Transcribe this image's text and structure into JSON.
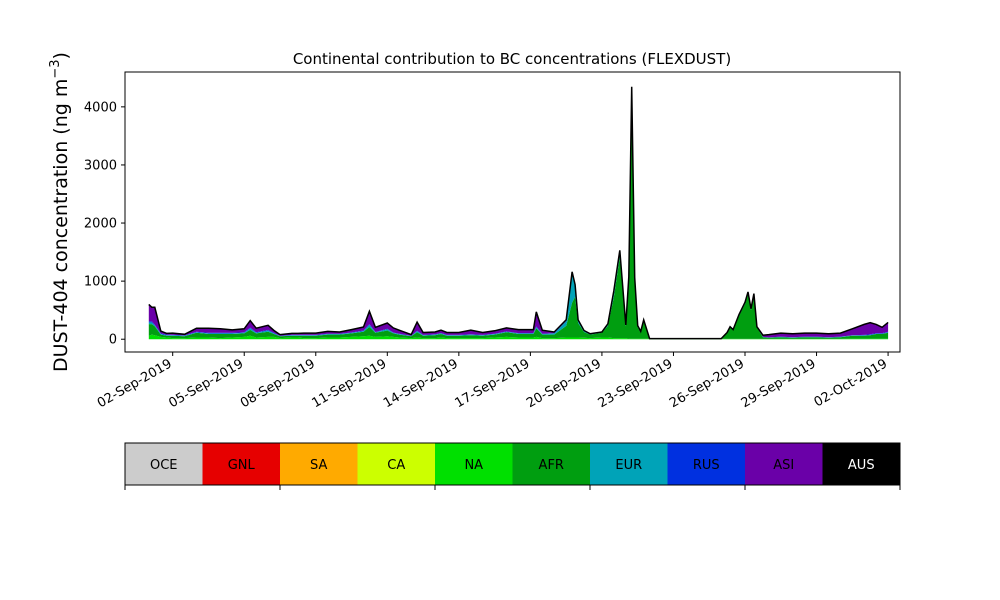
{
  "chart_data": {
    "type": "area",
    "title": "Continental contribution to BC concentrations (FLEXDUST)",
    "ylabel": "DUST-404 concentration (ng m",
    "ylabel_exponent": "−3",
    "ylabel_close": ")",
    "xlabel": "",
    "x_axis": "date",
    "xlim": [
      "2019-08-31T00:00",
      "2019-10-02T12:00"
    ],
    "ylim": [
      -220,
      4600
    ],
    "x_ticks": [
      "2019-09-02",
      "2019-09-05",
      "2019-09-08",
      "2019-09-11",
      "2019-09-14",
      "2019-09-17",
      "2019-09-20",
      "2019-09-23",
      "2019-09-26",
      "2019-09-29",
      "2019-10-02"
    ],
    "x_tick_labels": [
      "02-Sep-2019",
      "05-Sep-2019",
      "08-Sep-2019",
      "11-Sep-2019",
      "14-Sep-2019",
      "17-Sep-2019",
      "20-Sep-2019",
      "23-Sep-2019",
      "26-Sep-2019",
      "29-Sep-2019",
      "02-Oct-2019"
    ],
    "y_ticks": [
      0,
      1000,
      2000,
      3000,
      4000
    ],
    "y_tick_labels": [
      "0",
      "1000",
      "2000",
      "3000",
      "4000"
    ],
    "grid": false,
    "legend_placement": "colorbar below the plot",
    "legend": [
      {
        "label": "OCE",
        "color": "#cccccc",
        "text_color": "#000000"
      },
      {
        "label": "GNL",
        "color": "#e60000",
        "text_color": "#000000"
      },
      {
        "label": "SA",
        "color": "#ffaa00",
        "text_color": "#000000"
      },
      {
        "label": "CA",
        "color": "#ccff00",
        "text_color": "#000000"
      },
      {
        "label": "NA",
        "color": "#00e000",
        "text_color": "#000000"
      },
      {
        "label": "AFR",
        "color": "#009e10",
        "text_color": "#000000"
      },
      {
        "label": "EUR",
        "color": "#00a3b8",
        "text_color": "#000000"
      },
      {
        "label": "RUS",
        "color": "#0030e0",
        "text_color": "#000000"
      },
      {
        "label": "ASI",
        "color": "#6a00a8",
        "text_color": "#000000"
      },
      {
        "label": "AUS",
        "color": "#000000",
        "text_color": "#ffffff"
      }
    ],
    "stack_order": [
      "NA",
      "AFR",
      "EUR",
      "RUS",
      "ASI"
    ],
    "total_line_color": "#000000",
    "x": [
      "2019-09-01T00:00",
      "2019-09-01T03:00",
      "2019-09-01T06:00",
      "2019-09-01T12:00",
      "2019-09-01T18:00",
      "2019-09-02T00:00",
      "2019-09-02T12:00",
      "2019-09-03T00:00",
      "2019-09-03T12:00",
      "2019-09-04T00:00",
      "2019-09-04T12:00",
      "2019-09-05T00:00",
      "2019-09-05T06:00",
      "2019-09-05T12:00",
      "2019-09-06T00:00",
      "2019-09-06T06:00",
      "2019-09-06T12:00",
      "2019-09-07T00:00",
      "2019-09-07T06:00",
      "2019-09-07T12:00",
      "2019-09-08T00:00",
      "2019-09-08T12:00",
      "2019-09-09T00:00",
      "2019-09-09T12:00",
      "2019-09-10T00:00",
      "2019-09-10T06:00",
      "2019-09-10T12:00",
      "2019-09-11T00:00",
      "2019-09-11T06:00",
      "2019-09-11T12:00",
      "2019-09-12T00:00",
      "2019-09-12T06:00",
      "2019-09-12T12:00",
      "2019-09-13T00:00",
      "2019-09-13T06:00",
      "2019-09-13T12:00",
      "2019-09-14T00:00",
      "2019-09-14T12:00",
      "2019-09-15T00:00",
      "2019-09-15T12:00",
      "2019-09-16T00:00",
      "2019-09-16T12:00",
      "2019-09-17T00:00",
      "2019-09-17T03:00",
      "2019-09-17T06:00",
      "2019-09-17T12:00",
      "2019-09-18T00:00",
      "2019-09-18T12:00",
      "2019-09-18T18:00",
      "2019-09-18T21:00",
      "2019-09-19T00:00",
      "2019-09-19T06:00",
      "2019-09-19T12:00",
      "2019-09-20T00:00",
      "2019-09-20T06:00",
      "2019-09-20T12:00",
      "2019-09-20T18:00",
      "2019-09-20T21:00",
      "2019-09-21T00:00",
      "2019-09-21T03:00",
      "2019-09-21T06:00",
      "2019-09-21T09:00",
      "2019-09-21T12:00",
      "2019-09-21T15:00",
      "2019-09-21T18:00",
      "2019-09-22T00:00",
      "2019-09-22T06:00",
      "2019-09-22T12:00",
      "2019-09-23T00:00",
      "2019-09-23T12:00",
      "2019-09-24T00:00",
      "2019-09-24T12:00",
      "2019-09-25T00:00",
      "2019-09-25T06:00",
      "2019-09-25T09:00",
      "2019-09-25T12:00",
      "2019-09-25T18:00",
      "2019-09-26T00:00",
      "2019-09-26T03:00",
      "2019-09-26T06:00",
      "2019-09-26T09:00",
      "2019-09-26T12:00",
      "2019-09-26T18:00",
      "2019-09-27T00:00",
      "2019-09-27T12:00",
      "2019-09-28T00:00",
      "2019-09-28T12:00",
      "2019-09-29T00:00",
      "2019-09-29T12:00",
      "2019-09-30T00:00",
      "2019-09-30T12:00",
      "2019-10-01T00:00",
      "2019-10-01T06:00",
      "2019-10-01T12:00",
      "2019-10-01T18:00",
      "2019-10-02T00:00"
    ],
    "series": [
      {
        "name": "NA",
        "values": [
          60,
          80,
          70,
          40,
          30,
          20,
          20,
          30,
          30,
          20,
          30,
          40,
          60,
          30,
          40,
          40,
          20,
          30,
          30,
          20,
          20,
          30,
          30,
          40,
          50,
          60,
          40,
          50,
          40,
          30,
          20,
          30,
          20,
          20,
          30,
          20,
          20,
          20,
          20,
          30,
          40,
          30,
          30,
          30,
          40,
          20,
          20,
          30,
          30,
          30,
          30,
          25,
          20,
          30,
          30,
          20,
          20,
          20,
          20,
          10,
          10,
          10,
          10,
          10,
          10,
          5,
          5,
          5,
          5,
          5,
          5,
          5,
          5,
          5,
          5,
          5,
          5,
          5,
          5,
          5,
          5,
          5,
          5,
          5,
          5,
          5,
          5,
          5,
          5,
          5,
          10,
          10,
          10,
          10,
          10,
          10
        ]
      },
      {
        "name": "AFR",
        "values": [
          200,
          180,
          150,
          40,
          30,
          40,
          30,
          80,
          60,
          70,
          60,
          60,
          100,
          70,
          90,
          50,
          30,
          30,
          30,
          40,
          40,
          50,
          50,
          60,
          80,
          150,
          70,
          100,
          60,
          50,
          30,
          90,
          40,
          50,
          60,
          40,
          40,
          50,
          40,
          50,
          80,
          60,
          60,
          60,
          150,
          60,
          60,
          200,
          600,
          700,
          250,
          100,
          60,
          80,
          200,
          700,
          1400,
          800,
          200,
          1000,
          4300,
          1000,
          200,
          100,
          300,
          5,
          5,
          5,
          5,
          5,
          5,
          5,
          5,
          100,
          200,
          150,
          400,
          600,
          780,
          500,
          750,
          200,
          30,
          20,
          30,
          20,
          30,
          30,
          20,
          30,
          50,
          50,
          60,
          80,
          80,
          100
        ]
      },
      {
        "name": "EUR",
        "values": [
          30,
          30,
          20,
          10,
          10,
          10,
          10,
          10,
          10,
          10,
          10,
          10,
          30,
          10,
          20,
          10,
          5,
          10,
          10,
          10,
          10,
          10,
          10,
          10,
          10,
          40,
          10,
          20,
          10,
          10,
          5,
          20,
          10,
          10,
          10,
          10,
          10,
          10,
          10,
          10,
          10,
          10,
          10,
          10,
          20,
          10,
          20,
          80,
          500,
          200,
          50,
          20,
          10,
          10,
          30,
          100,
          100,
          60,
          20,
          60,
          30,
          50,
          20,
          20,
          20,
          0,
          0,
          0,
          0,
          0,
          0,
          0,
          0,
          10,
          10,
          10,
          20,
          30,
          30,
          20,
          30,
          10,
          5,
          5,
          5,
          5,
          5,
          5,
          5,
          5,
          5,
          5,
          5,
          5,
          5,
          10
        ]
      },
      {
        "name": "RUS",
        "values": [
          20,
          20,
          10,
          10,
          10,
          5,
          5,
          10,
          10,
          10,
          10,
          10,
          10,
          10,
          10,
          10,
          5,
          5,
          5,
          5,
          5,
          5,
          5,
          5,
          10,
          10,
          5,
          10,
          5,
          5,
          5,
          5,
          5,
          5,
          5,
          5,
          5,
          5,
          5,
          5,
          5,
          5,
          5,
          5,
          10,
          5,
          5,
          5,
          10,
          10,
          5,
          5,
          5,
          5,
          5,
          10,
          10,
          10,
          5,
          5,
          5,
          5,
          5,
          5,
          5,
          0,
          0,
          0,
          0,
          0,
          0,
          0,
          0,
          0,
          0,
          0,
          0,
          0,
          0,
          0,
          0,
          0,
          0,
          0,
          5,
          5,
          5,
          5,
          5,
          5,
          5,
          10,
          10,
          10,
          10,
          10
        ]
      },
      {
        "name": "ASI",
        "values": [
          290,
          240,
          300,
          40,
          20,
          30,
          20,
          60,
          80,
          70,
          50,
          60,
          120,
          70,
          80,
          40,
          20,
          25,
          25,
          30,
          30,
          40,
          30,
          50,
          60,
          220,
          80,
          100,
          80,
          60,
          20,
          150,
          40,
          40,
          50,
          40,
          40,
          70,
          40,
          50,
          60,
          60,
          60,
          60,
          250,
          60,
          20,
          20,
          20,
          0,
          0,
          0,
          0,
          0,
          0,
          0,
          0,
          0,
          0,
          0,
          0,
          0,
          0,
          0,
          0,
          0,
          0,
          0,
          0,
          0,
          0,
          0,
          0,
          0,
          0,
          0,
          0,
          0,
          0,
          0,
          0,
          0,
          30,
          50,
          60,
          60,
          60,
          60,
          60,
          60,
          110,
          180,
          200,
          150,
          100,
          160
        ]
      }
    ],
    "total": [
      600,
      550,
      550,
      140,
      100,
      105,
      85,
      190,
      190,
      180,
      160,
      180,
      320,
      190,
      240,
      150,
      80,
      100,
      100,
      105,
      105,
      135,
      125,
      165,
      210,
      480,
      205,
      280,
      195,
      155,
      80,
      295,
      115,
      125,
      155,
      115,
      115,
      155,
      115,
      145,
      195,
      165,
      165,
      165,
      470,
      155,
      125,
      335,
      1160,
      940,
      335,
      150,
      95,
      125,
      265,
      830,
      1530,
      890,
      245,
      1075,
      4345,
      1065,
      235,
      135,
      335,
      10,
      10,
      10,
      10,
      10,
      10,
      10,
      10,
      115,
      215,
      165,
      425,
      635,
      815,
      525,
      785,
      215,
      70,
      80,
      105,
      95,
      105,
      105,
      95,
      105,
      180,
      255,
      285,
      255,
      205,
      290
    ]
  }
}
